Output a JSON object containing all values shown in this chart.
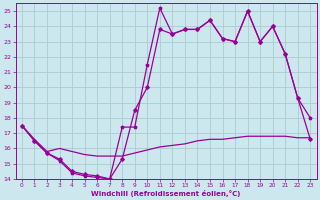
{
  "xlabel": "Windchill (Refroidissement éolien,°C)",
  "bg_color": "#cce8ee",
  "grid_color": "#aacccc",
  "line_color": "#990099",
  "xlim": [
    -0.5,
    23.5
  ],
  "ylim": [
    14,
    25.5
  ],
  "xticks": [
    0,
    1,
    2,
    3,
    4,
    5,
    6,
    7,
    8,
    9,
    10,
    11,
    12,
    13,
    14,
    15,
    16,
    17,
    18,
    19,
    20,
    21,
    22,
    23
  ],
  "yticks": [
    14,
    15,
    16,
    17,
    18,
    19,
    20,
    21,
    22,
    23,
    24,
    25
  ],
  "line1_x": [
    0,
    1,
    2,
    3,
    4,
    5,
    6,
    7,
    8,
    9,
    10,
    11,
    12,
    13,
    14,
    15,
    16,
    17,
    18,
    19,
    20,
    21,
    22,
    23
  ],
  "line1_y": [
    17.5,
    16.5,
    15.7,
    15.2,
    14.4,
    14.2,
    14.1,
    14.0,
    17.4,
    17.4,
    21.5,
    25.2,
    23.5,
    23.8,
    23.8,
    24.4,
    23.2,
    23.0,
    25.0,
    23.0,
    24.0,
    22.2,
    19.3,
    18.0
  ],
  "line2_x": [
    0,
    1,
    2,
    3,
    4,
    5,
    6,
    7,
    8,
    9,
    10,
    11,
    12,
    13,
    14,
    15,
    16,
    17,
    18,
    19,
    20,
    21,
    22,
    23
  ],
  "line2_y": [
    17.5,
    16.6,
    15.8,
    16.0,
    15.8,
    15.6,
    15.5,
    15.5,
    15.5,
    15.7,
    15.9,
    16.1,
    16.2,
    16.3,
    16.5,
    16.6,
    16.6,
    16.7,
    16.8,
    16.8,
    16.8,
    16.8,
    16.7,
    16.7
  ],
  "line3_x": [
    0,
    1,
    2,
    3,
    4,
    5,
    6,
    7,
    8,
    9,
    10,
    11,
    12,
    13,
    14,
    15,
    16,
    17,
    18,
    19,
    20,
    21,
    22,
    23
  ],
  "line3_y": [
    17.5,
    16.5,
    15.7,
    15.3,
    14.5,
    14.3,
    14.2,
    14.0,
    15.3,
    18.5,
    20.0,
    23.8,
    23.5,
    23.8,
    23.8,
    24.4,
    23.2,
    23.0,
    25.0,
    23.0,
    24.0,
    22.2,
    19.3,
    16.6
  ]
}
